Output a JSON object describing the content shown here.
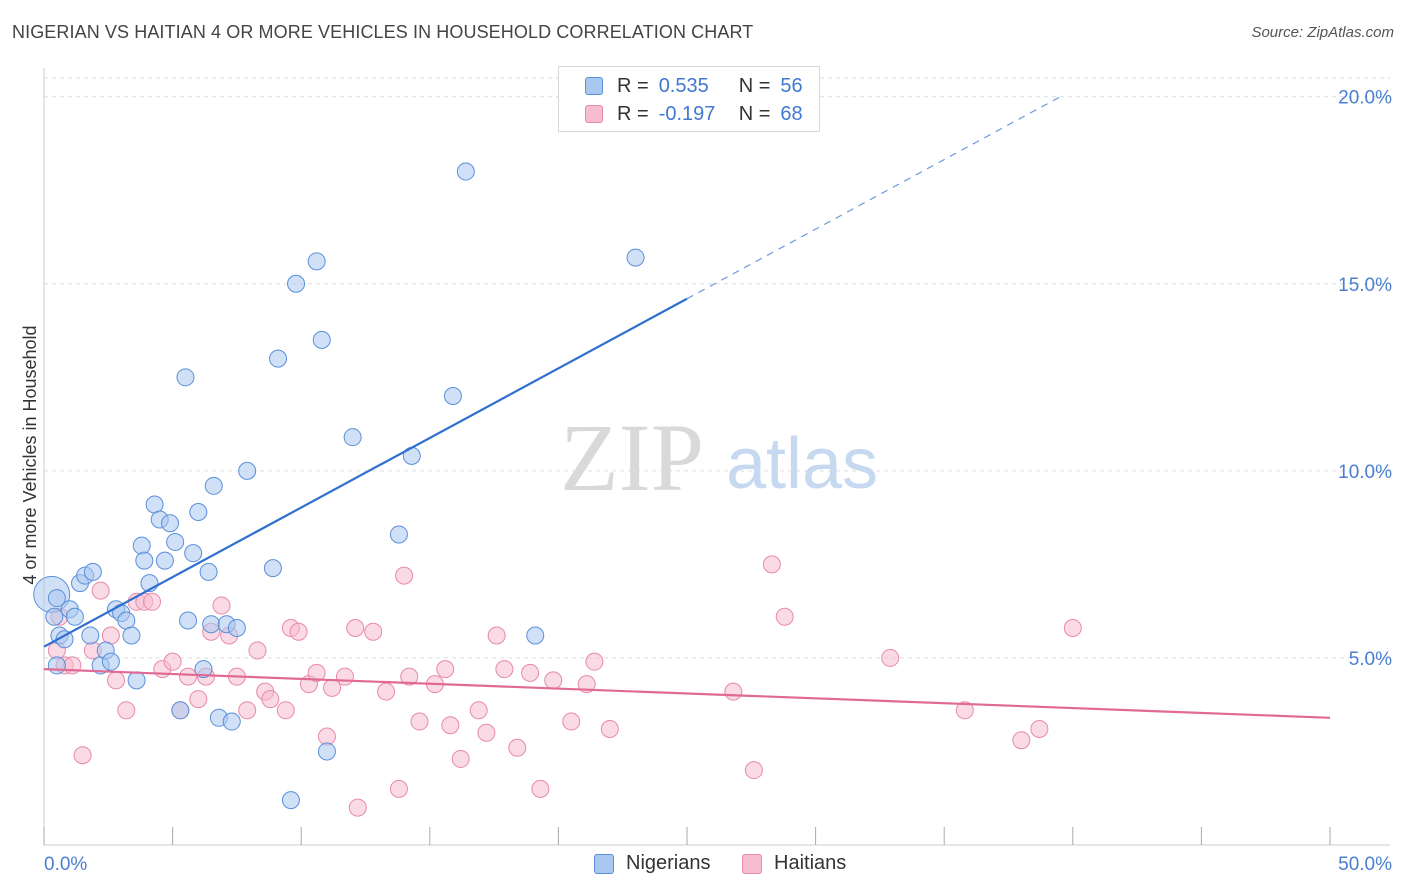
{
  "title": "NIGERIAN VS HAITIAN 4 OR MORE VEHICLES IN HOUSEHOLD CORRELATION CHART",
  "source": "Source: ZipAtlas.com",
  "watermark": {
    "zip": "ZIP",
    "atlas": "atlas"
  },
  "legend_top": [
    {
      "r_label": "R =",
      "r_value": "0.535",
      "n_label": "N =",
      "n_value": "56"
    },
    {
      "r_label": "R =",
      "r_value": "-0.197",
      "n_label": "N =",
      "n_value": "68"
    }
  ],
  "legend_bottom": [
    "Nigerians",
    "Haitians"
  ],
  "colors": {
    "nigerians_fill": "#a9c8f0",
    "nigerians_stroke": "#5b8fd9",
    "nigerians_line": "#2f6fd0",
    "haitians_fill": "#f6bccf",
    "haitians_stroke": "#e88aa8",
    "haitians_line": "#e06a95",
    "tick_text": "#4a7fd0",
    "grid": "#dddddd"
  },
  "chart_data": {
    "type": "scatter",
    "title": "NIGERIAN VS HAITIAN 4 OR MORE VEHICLES IN HOUSEHOLD CORRELATION CHART",
    "xlabel": "",
    "ylabel": "4 or more Vehicles in Household",
    "xlim": [
      0,
      50
    ],
    "ylim": [
      0,
      20.5
    ],
    "x_ticks": [
      "0.0%",
      "50.0%"
    ],
    "y_ticks": [
      "5.0%",
      "10.0%",
      "15.0%",
      "20.0%"
    ],
    "y_tick_values": [
      5,
      10,
      15,
      20
    ],
    "grid": true,
    "legend_position": "top-center",
    "series": [
      {
        "name": "Nigerians",
        "R": 0.535,
        "N": 56,
        "trend": {
          "x0": 0,
          "y0": 5.3,
          "x1": 25,
          "y1": 14.6,
          "dashed_to_x": 39.5
        },
        "points": [
          [
            0.3,
            6.7
          ],
          [
            0.4,
            6.1
          ],
          [
            0.5,
            4.8
          ],
          [
            0.6,
            5.6
          ],
          [
            0.8,
            5.5
          ],
          [
            1.0,
            6.3
          ],
          [
            1.2,
            6.1
          ],
          [
            1.4,
            7.0
          ],
          [
            1.6,
            7.2
          ],
          [
            1.8,
            5.6
          ],
          [
            1.9,
            7.3
          ],
          [
            2.2,
            4.8
          ],
          [
            2.4,
            5.2
          ],
          [
            2.6,
            4.9
          ],
          [
            2.8,
            6.3
          ],
          [
            3.0,
            6.2
          ],
          [
            3.2,
            6.0
          ],
          [
            3.4,
            5.6
          ],
          [
            3.6,
            4.4
          ],
          [
            3.8,
            8.0
          ],
          [
            3.9,
            7.6
          ],
          [
            4.1,
            7.0
          ],
          [
            4.3,
            9.1
          ],
          [
            4.5,
            8.7
          ],
          [
            4.7,
            7.6
          ],
          [
            4.9,
            8.6
          ],
          [
            5.1,
            8.1
          ],
          [
            5.3,
            3.6
          ],
          [
            5.5,
            12.5
          ],
          [
            5.6,
            6.0
          ],
          [
            5.8,
            7.8
          ],
          [
            6.0,
            8.9
          ],
          [
            6.2,
            4.7
          ],
          [
            6.4,
            7.3
          ],
          [
            6.5,
            5.9
          ],
          [
            6.6,
            9.6
          ],
          [
            6.8,
            3.4
          ],
          [
            7.1,
            5.9
          ],
          [
            7.3,
            3.3
          ],
          [
            7.5,
            5.8
          ],
          [
            7.9,
            10.0
          ],
          [
            8.9,
            7.4
          ],
          [
            9.1,
            13.0
          ],
          [
            9.6,
            1.2
          ],
          [
            9.8,
            15.0
          ],
          [
            10.6,
            15.6
          ],
          [
            10.8,
            13.5
          ],
          [
            11.0,
            2.5
          ],
          [
            12.0,
            10.9
          ],
          [
            13.8,
            8.3
          ],
          [
            14.3,
            10.4
          ],
          [
            15.9,
            12.0
          ],
          [
            16.4,
            18.0
          ],
          [
            19.1,
            5.6
          ],
          [
            23.0,
            15.7
          ],
          [
            0.5,
            6.6
          ]
        ]
      },
      {
        "name": "Haitians",
        "R": -0.197,
        "N": 68,
        "trend": {
          "x0": 0,
          "y0": 4.7,
          "x1": 50,
          "y1": 3.4
        },
        "points": [
          [
            0.5,
            5.2
          ],
          [
            0.8,
            4.8
          ],
          [
            1.1,
            4.8
          ],
          [
            1.5,
            2.4
          ],
          [
            1.9,
            5.2
          ],
          [
            2.2,
            6.8
          ],
          [
            2.6,
            5.6
          ],
          [
            2.8,
            4.4
          ],
          [
            3.2,
            3.6
          ],
          [
            3.6,
            6.5
          ],
          [
            3.9,
            6.5
          ],
          [
            4.2,
            6.5
          ],
          [
            4.6,
            4.7
          ],
          [
            5.0,
            4.9
          ],
          [
            5.3,
            3.6
          ],
          [
            5.6,
            4.5
          ],
          [
            6.0,
            3.9
          ],
          [
            6.3,
            4.5
          ],
          [
            6.5,
            5.7
          ],
          [
            6.9,
            6.4
          ],
          [
            7.2,
            5.6
          ],
          [
            7.5,
            4.5
          ],
          [
            7.9,
            3.6
          ],
          [
            8.3,
            5.2
          ],
          [
            8.6,
            4.1
          ],
          [
            8.8,
            3.9
          ],
          [
            9.4,
            3.6
          ],
          [
            9.6,
            5.8
          ],
          [
            9.9,
            5.7
          ],
          [
            10.3,
            4.3
          ],
          [
            10.6,
            4.6
          ],
          [
            11.0,
            2.9
          ],
          [
            11.2,
            4.2
          ],
          [
            11.7,
            4.5
          ],
          [
            12.1,
            5.8
          ],
          [
            12.2,
            1.0
          ],
          [
            12.8,
            5.7
          ],
          [
            13.3,
            4.1
          ],
          [
            13.8,
            1.5
          ],
          [
            14.0,
            7.2
          ],
          [
            14.2,
            4.5
          ],
          [
            14.6,
            3.3
          ],
          [
            15.2,
            4.3
          ],
          [
            15.6,
            4.7
          ],
          [
            15.8,
            3.2
          ],
          [
            16.2,
            2.3
          ],
          [
            16.9,
            3.6
          ],
          [
            17.2,
            3.0
          ],
          [
            17.6,
            5.6
          ],
          [
            17.9,
            4.7
          ],
          [
            18.4,
            2.6
          ],
          [
            18.9,
            4.6
          ],
          [
            19.3,
            1.5
          ],
          [
            19.8,
            4.4
          ],
          [
            20.5,
            3.3
          ],
          [
            21.1,
            4.3
          ],
          [
            21.4,
            4.9
          ],
          [
            22.0,
            3.1
          ],
          [
            26.8,
            4.1
          ],
          [
            27.6,
            2.0
          ],
          [
            28.3,
            7.5
          ],
          [
            28.8,
            6.1
          ],
          [
            32.9,
            5.0
          ],
          [
            35.8,
            3.6
          ],
          [
            38.0,
            2.8
          ],
          [
            38.7,
            3.1
          ],
          [
            40.0,
            5.8
          ],
          [
            0.6,
            6.1
          ]
        ]
      }
    ]
  }
}
